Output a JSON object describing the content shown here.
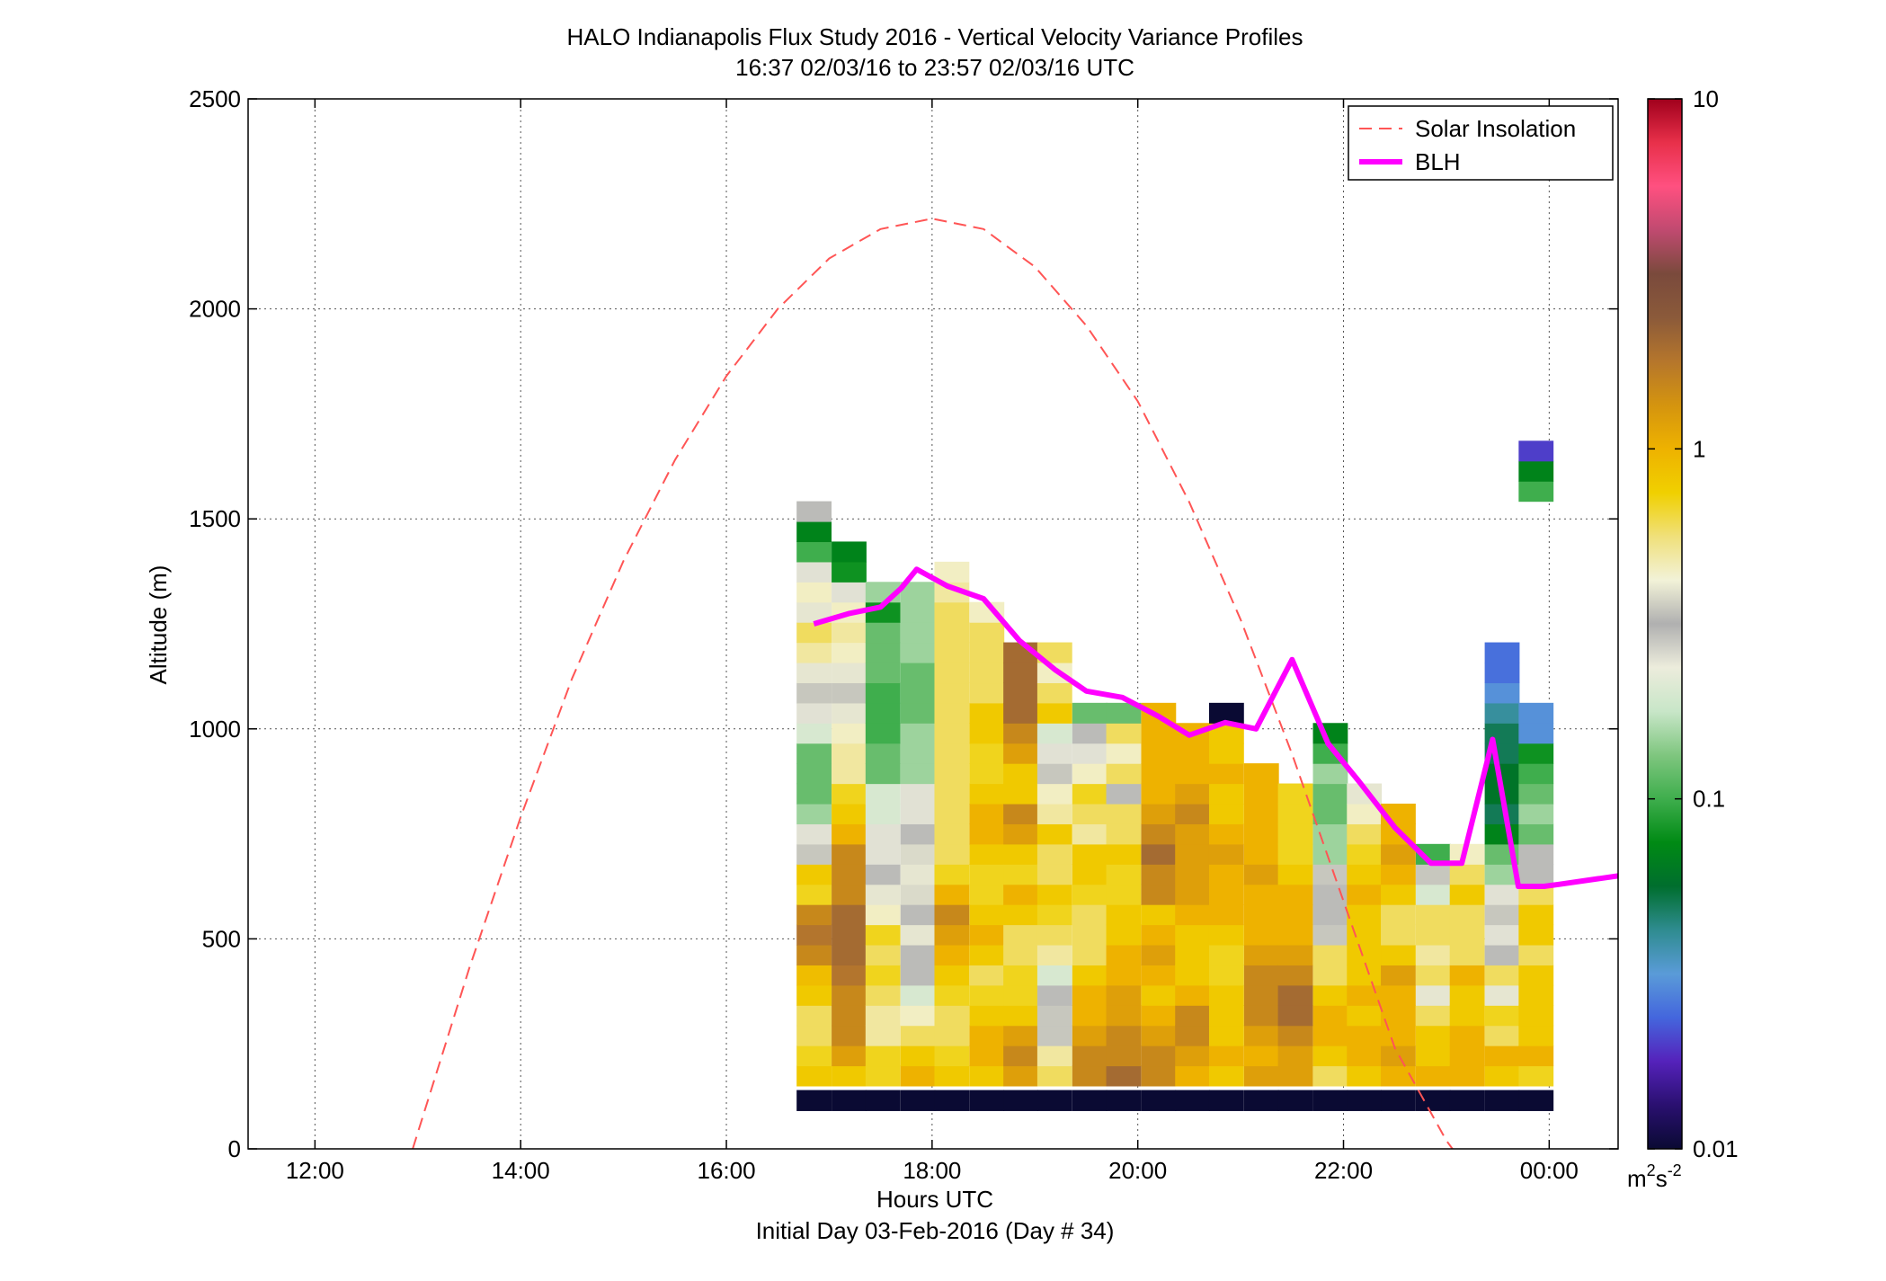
{
  "chart_data": {
    "type": "heatmap",
    "title": "HALO Indianapolis Flux Study 2016 - Vertical Velocity Variance Profiles",
    "subtitle": "16:37 02/03/16 to 23:57 02/03/16  UTC",
    "xlabel": "Hours UTC",
    "xlabel2": "Initial Day 03-Feb-2016 (Day # 34)",
    "ylabel": "Altitude (m)",
    "xlim": [
      11.35,
      24.67
    ],
    "ylim": [
      0,
      2500
    ],
    "x_ticks": [
      {
        "value": 12,
        "label": "12:00"
      },
      {
        "value": 14,
        "label": "14:00"
      },
      {
        "value": 16,
        "label": "16:00"
      },
      {
        "value": 18,
        "label": "18:00"
      },
      {
        "value": 20,
        "label": "20:00"
      },
      {
        "value": 22,
        "label": "22:00"
      },
      {
        "value": 24,
        "label": "00:00"
      }
    ],
    "y_ticks": [
      {
        "value": 0,
        "label": "0"
      },
      {
        "value": 500,
        "label": "500"
      },
      {
        "value": 1000,
        "label": "1000"
      },
      {
        "value": 1500,
        "label": "1500"
      },
      {
        "value": 2000,
        "label": "2000"
      },
      {
        "value": 2500,
        "label": "2500"
      }
    ],
    "grid": true,
    "legend_position": "top-right",
    "legend": [
      {
        "label": "Solar Insolation",
        "color": "#ff5555",
        "style": "dashed"
      },
      {
        "label": "BLH",
        "color": "#ff00ff",
        "style": "solid"
      }
    ],
    "colorbar": {
      "scale": "log",
      "min": 0.01,
      "max": 10,
      "tick_labels": [
        "10",
        "1",
        "0.1",
        "0.01"
      ],
      "unit_base": "m",
      "unit_exp1": "2",
      "unit_mid": "s",
      "unit_exp2": "-2",
      "stops": [
        "#0a0a33",
        "#2a1070",
        "#5522bb",
        "#4466dd",
        "#5a9bd8",
        "#2f8c90",
        "#006e2e",
        "#008a14",
        "#3fae4d",
        "#7fc67f",
        "#c8e6c8",
        "#ececdc",
        "#b0b0b0",
        "#f2f2d8",
        "#f0e07a",
        "#f0d000",
        "#eeb200",
        "#d4940f",
        "#b5762c",
        "#8b5a3a",
        "#7a4a3c",
        "#c04a70",
        "#ff5080",
        "#e8304a",
        "#a0001c"
      ]
    },
    "series": [
      {
        "name": "Solar Insolation",
        "x": [
          12.95,
          13.5,
          14.0,
          14.5,
          15.0,
          15.5,
          16.0,
          16.5,
          17.0,
          17.5,
          18.0,
          18.5,
          19.0,
          19.5,
          20.0,
          20.5,
          21.0,
          21.5,
          22.0,
          22.5,
          23.0,
          23.15
        ],
        "y": [
          0,
          430,
          790,
          1120,
          1400,
          1640,
          1840,
          2000,
          2120,
          2190,
          2215,
          2190,
          2100,
          1960,
          1780,
          1540,
          1260,
          940,
          590,
          240,
          20,
          -30
        ]
      },
      {
        "name": "BLH",
        "x": [
          16.85,
          17.2,
          17.5,
          17.7,
          17.85,
          18.15,
          18.5,
          18.85,
          19.2,
          19.5,
          19.85,
          20.2,
          20.5,
          20.85,
          21.15,
          21.5,
          21.85,
          22.15,
          22.5,
          22.85,
          23.15,
          23.45,
          23.7,
          23.95,
          24.1,
          24.67
        ],
        "y": [
          1250,
          1275,
          1290,
          1335,
          1380,
          1340,
          1310,
          1210,
          1140,
          1090,
          1075,
          1030,
          985,
          1015,
          1000,
          1165,
          965,
          875,
          765,
          680,
          680,
          975,
          625,
          625,
          630,
          650
        ]
      }
    ],
    "columns_x": [
      16.85,
      17.19,
      17.52,
      17.86,
      18.19,
      18.53,
      18.86,
      19.19,
      19.53,
      19.86,
      20.2,
      20.53,
      20.86,
      21.2,
      21.53,
      21.87,
      22.2,
      22.53,
      22.87,
      23.2,
      23.54,
      23.87
    ],
    "column_width_hours": 0.334,
    "bin_start_m": 150,
    "bin_height_m": 48,
    "ground_row": {
      "y_bottom": 90,
      "y_top": 140,
      "value": 0.01
    },
    "columns": [
      [
        0.8,
        0.7,
        0.6,
        0.6,
        0.8,
        0.9,
        1.5,
        1.8,
        1.5,
        0.7,
        0.8,
        0.35,
        0.25,
        0.15,
        0.12,
        0.12,
        0.12,
        0.2,
        0.25,
        0.35,
        0.4,
        0.5,
        0.6,
        0.4,
        0.45,
        0.25,
        0.1,
        0.07,
        0.3
      ],
      [
        0.8,
        1.2,
        1.5,
        1.5,
        1.5,
        1.8,
        2.0,
        2.0,
        2.0,
        1.5,
        1.5,
        1.5,
        1.0,
        0.8,
        0.7,
        0.5,
        0.5,
        0.45,
        0.4,
        0.35,
        0.4,
        0.45,
        0.5,
        0.45,
        0.25,
        0.08,
        0.07
      ],
      [
        0.7,
        0.7,
        0.5,
        0.5,
        0.6,
        0.7,
        0.6,
        0.7,
        0.45,
        0.4,
        0.3,
        0.25,
        0.25,
        0.2,
        0.2,
        0.12,
        0.12,
        0.1,
        0.1,
        0.1,
        0.12,
        0.12,
        0.12,
        0.08,
        0.15
      ],
      [
        1.0,
        0.8,
        0.6,
        0.45,
        0.2,
        0.3,
        0.3,
        0.4,
        0.3,
        0.38,
        0.4,
        0.38,
        0.3,
        0.25,
        0.25,
        0.15,
        0.15,
        0.15,
        0.12,
        0.12,
        0.12,
        0.15,
        0.15,
        0.15,
        0.15
      ],
      [
        0.8,
        0.7,
        0.6,
        0.6,
        0.7,
        0.8,
        1.0,
        1.2,
        1.5,
        1.0,
        0.7,
        0.6,
        0.6,
        0.6,
        0.6,
        0.6,
        0.6,
        0.6,
        0.6,
        0.6,
        0.6,
        0.6,
        0.6,
        0.6,
        0.5,
        0.45
      ],
      [
        0.8,
        1.0,
        1.0,
        0.8,
        0.7,
        0.6,
        0.8,
        1.0,
        0.8,
        0.7,
        0.7,
        0.8,
        1.0,
        1.0,
        0.8,
        0.7,
        0.7,
        0.8,
        0.8,
        0.6,
        0.6,
        0.6,
        0.6,
        0.45
      ],
      [
        1.2,
        1.5,
        1.2,
        0.8,
        0.7,
        0.7,
        0.6,
        0.6,
        0.8,
        1.0,
        0.7,
        0.8,
        1.2,
        1.5,
        0.8,
        0.8,
        1.2,
        1.5,
        2.0,
        2.0,
        2.0,
        2.0
      ],
      [
        0.6,
        0.5,
        0.35,
        0.35,
        0.3,
        0.2,
        0.5,
        0.6,
        0.7,
        0.8,
        0.6,
        0.6,
        0.8,
        0.5,
        0.45,
        0.35,
        0.25,
        0.2,
        0.8,
        0.6,
        0.45,
        0.6
      ],
      [
        1.5,
        1.5,
        1.2,
        1.0,
        1.0,
        0.8,
        0.6,
        0.6,
        0.6,
        0.7,
        0.8,
        0.8,
        0.5,
        0.6,
        0.7,
        0.45,
        0.25,
        0.3,
        0.12
      ],
      [
        2.0,
        1.5,
        1.5,
        1.2,
        1.2,
        1.0,
        1.0,
        0.8,
        0.8,
        0.7,
        0.7,
        0.8,
        0.6,
        0.6,
        0.3,
        0.6,
        0.45,
        0.6,
        0.12
      ],
      [
        1.5,
        1.5,
        1.2,
        1.0,
        0.8,
        1.0,
        1.2,
        1.0,
        0.8,
        1.5,
        1.5,
        2.0,
        1.5,
        1.2,
        1.0,
        1.0,
        1.0,
        1.0,
        1.0
      ],
      [
        1.0,
        1.2,
        1.5,
        1.5,
        1.0,
        0.8,
        0.8,
        0.8,
        1.0,
        1.2,
        1.2,
        1.2,
        1.2,
        1.5,
        1.2,
        1.0,
        1.0,
        1.0
      ],
      [
        0.8,
        1.0,
        0.8,
        0.8,
        0.8,
        0.7,
        0.7,
        0.8,
        1.0,
        1.0,
        1.0,
        1.2,
        1.0,
        0.8,
        0.8,
        1.0,
        0.8,
        0.8,
        0.01
      ],
      [
        1.2,
        1.0,
        1.2,
        1.5,
        1.5,
        1.5,
        1.2,
        1.0,
        1.0,
        1.0,
        1.2,
        1.0,
        1.0,
        1.0,
        1.0,
        1.0
      ],
      [
        1.2,
        1.2,
        1.5,
        2.0,
        2.0,
        1.5,
        1.2,
        1.0,
        1.0,
        1.0,
        0.8,
        0.7,
        0.7,
        0.7,
        0.7
      ],
      [
        0.6,
        0.8,
        1.0,
        1.0,
        0.8,
        0.6,
        0.6,
        0.35,
        0.3,
        0.3,
        0.35,
        0.15,
        0.15,
        0.12,
        0.12,
        0.15,
        0.1,
        0.07
      ],
      [
        0.8,
        1.0,
        1.0,
        0.8,
        1.0,
        0.8,
        0.8,
        0.8,
        0.8,
        1.0,
        0.8,
        0.7,
        0.6,
        0.45,
        0.4
      ],
      [
        1.0,
        1.2,
        1.0,
        1.0,
        1.0,
        1.2,
        0.8,
        0.6,
        0.6,
        0.8,
        1.0,
        1.2,
        1.0,
        1.0
      ],
      [
        1.0,
        0.8,
        0.8,
        0.6,
        0.4,
        0.6,
        0.5,
        0.6,
        0.6,
        0.2,
        0.35,
        0.1
      ],
      [
        1.0,
        1.0,
        1.0,
        0.8,
        0.8,
        1.0,
        0.6,
        0.6,
        0.6,
        0.8,
        0.6,
        0.45
      ],
      [
        0.8,
        1.0,
        0.6,
        0.7,
        0.4,
        0.6,
        0.3,
        0.25,
        0.35,
        0.25,
        0.15,
        0.12,
        0.07,
        0.05,
        0.06,
        0.06,
        0.05,
        0.05,
        0.04,
        0.03,
        0.025,
        0.025
      ],
      [
        0.7,
        1.0,
        0.8,
        0.8,
        0.8,
        0.8,
        0.6,
        0.8,
        0.8,
        0.6,
        0.3,
        0.3,
        0.12,
        0.15,
        0.12,
        0.1,
        0.08,
        0.03,
        0.03,
        null,
        null,
        null,
        null,
        null,
        null,
        null,
        null,
        null,
        null,
        0.1,
        0.07,
        0.02
      ]
    ]
  }
}
